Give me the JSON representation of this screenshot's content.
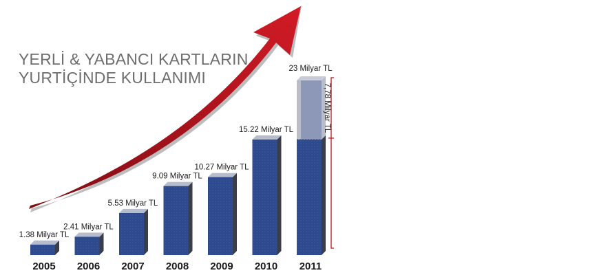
{
  "title_lines": [
    "YERLİ & YABANCI KARTLARIN",
    "YURTİÇİNDE KULLANIMI"
  ],
  "chart_data": {
    "type": "bar",
    "categories": [
      "2005",
      "2006",
      "2007",
      "2008",
      "2009",
      "2010",
      "2011"
    ],
    "values": [
      1.38,
      2.41,
      5.53,
      9.09,
      10.27,
      15.22,
      23
    ],
    "data_labels": [
      "1.38 Milyar TL",
      "2.41 Milyar TL",
      "5.53 Milyar TL",
      "9.09 Milyar TL",
      "10.27 Milyar TL",
      "15.22 Milyar TL",
      "23 Milyar TL"
    ],
    "stacked_last": {
      "base": 15.22,
      "increase": 7.78,
      "increase_label": "7,78 Milyar TL"
    },
    "ylim": [
      0,
      23
    ],
    "grid": false,
    "legend": "none",
    "colors": {
      "bar": "#2e4a8e",
      "bar_top": "#b6bccb",
      "bar_side": "#3a3e4b",
      "ghost_bar": "#8d97b8",
      "ghost_side": "#b9bdc7",
      "arrow": "#b0141e",
      "bracket": "#b0141e",
      "label": "#1a1a1a",
      "title": "#6e6e6e"
    }
  }
}
